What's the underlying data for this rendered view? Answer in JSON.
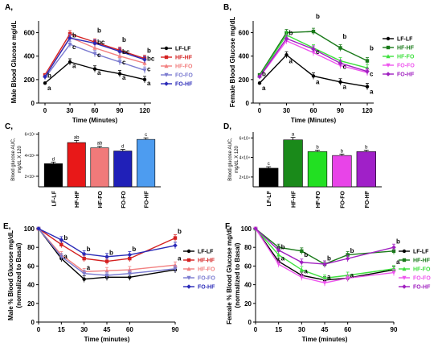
{
  "colors": {
    "LF-LF": "#000000",
    "HF-HF": "#d42020",
    "HF-FO": "#f28080",
    "FO-FO": "#7a7ad0",
    "FO-HF": "#2a2ab8",
    "B_HF-HF": "#1a7a1a",
    "B_HF-FO": "#3ee03e",
    "B_FO-FO": "#ee55ee",
    "B_FO-HF": "#a020c0",
    "C_FO-HF": "#4d9cf0",
    "D_HF-HF": "#1a8a1a",
    "D_HF-FO": "#22e022",
    "D_FO-FO": "#e844e8",
    "D_FO-HF": "#a020c8"
  },
  "chart_data": [
    {
      "id": "A",
      "panel_label": "A,",
      "type": "line",
      "ylabel": "Male Blood Glucose mg/dL",
      "xlabel": "Time (Minutes)",
      "x": [
        0,
        30,
        60,
        90,
        120
      ],
      "xticks": [
        "0",
        "30",
        "60",
        "90",
        "120"
      ],
      "ylim": [
        0,
        700
      ],
      "yticks": [
        "0",
        "200",
        "400",
        "600"
      ],
      "legend_position": "right",
      "series": [
        {
          "name": "LF-LF",
          "values": [
            170,
            350,
            290,
            250,
            200
          ]
        },
        {
          "name": "HF-HF",
          "values": [
            240,
            590,
            520,
            450,
            380
          ]
        },
        {
          "name": "HF-FO",
          "values": [
            230,
            560,
            470,
            400,
            340
          ]
        },
        {
          "name": "FO-FO",
          "values": [
            215,
            500,
            420,
            350,
            280
          ]
        },
        {
          "name": "FO-HF",
          "values": [
            225,
            555,
            510,
            440,
            370
          ]
        }
      ],
      "annotations": [
        {
          "x": 0,
          "y": 215,
          "text": "b"
        },
        {
          "x": 0,
          "y": 110,
          "text": "a"
        },
        {
          "x": 30,
          "y": 560,
          "text": "b"
        },
        {
          "x": 30,
          "y": 460,
          "text": "c"
        },
        {
          "x": 30,
          "y": 300,
          "text": "a"
        },
        {
          "x": 60,
          "y": 600,
          "text": "b"
        },
        {
          "x": 60,
          "y": 500,
          "text": "bc"
        },
        {
          "x": 60,
          "y": 390,
          "text": "c"
        },
        {
          "x": 60,
          "y": 240,
          "text": "a"
        },
        {
          "x": 90,
          "y": 520,
          "text": "b"
        },
        {
          "x": 90,
          "y": 420,
          "text": "bc"
        },
        {
          "x": 90,
          "y": 330,
          "text": "c"
        },
        {
          "x": 90,
          "y": 200,
          "text": "a"
        },
        {
          "x": 120,
          "y": 430,
          "text": "b"
        },
        {
          "x": 120,
          "y": 360,
          "text": "bc"
        },
        {
          "x": 120,
          "y": 270,
          "text": "c"
        },
        {
          "x": 120,
          "y": 150,
          "text": "a"
        }
      ]
    },
    {
      "id": "B",
      "panel_label": "B,",
      "type": "line",
      "ylabel": "Female Blood Glucose mg/dL",
      "xlabel": "Time (Minutes)",
      "x": [
        0,
        30,
        60,
        90,
        120
      ],
      "xticks": [
        "0",
        "30",
        "60",
        "90",
        "120"
      ],
      "ylim": [
        0,
        700
      ],
      "yticks": [
        "0",
        "200",
        "400",
        "600"
      ],
      "legend_position": "right",
      "series": [
        {
          "name": "LF-LF",
          "values": [
            170,
            410,
            230,
            180,
            140
          ]
        },
        {
          "name": "HF-HF",
          "values": [
            240,
            600,
            610,
            470,
            360
          ]
        },
        {
          "name": "HF-FO",
          "values": [
            230,
            580,
            470,
            360,
            300
          ]
        },
        {
          "name": "FO-FO",
          "values": [
            220,
            530,
            430,
            320,
            260
          ]
        },
        {
          "name": "FO-HF",
          "values": [
            225,
            550,
            460,
            340,
            270
          ]
        }
      ],
      "annotations": [
        {
          "x": 0,
          "y": 230,
          "text": "b"
        },
        {
          "x": 0,
          "y": 110,
          "text": "a"
        },
        {
          "x": 30,
          "y": 580,
          "text": "b"
        },
        {
          "x": 30,
          "y": 340,
          "text": "a"
        },
        {
          "x": 60,
          "y": 720,
          "text": "b"
        },
        {
          "x": 60,
          "y": 420,
          "text": "c"
        },
        {
          "x": 60,
          "y": 160,
          "text": "a"
        },
        {
          "x": 90,
          "y": 550,
          "text": "b"
        },
        {
          "x": 90,
          "y": 290,
          "text": "c"
        },
        {
          "x": 90,
          "y": 120,
          "text": "a"
        },
        {
          "x": 120,
          "y": 450,
          "text": "b"
        },
        {
          "x": 120,
          "y": 230,
          "text": "c"
        },
        {
          "x": 120,
          "y": 80,
          "text": "a"
        }
      ]
    },
    {
      "id": "C",
      "panel_label": "C,",
      "type": "bar",
      "ylabel": "Blood glucose AUC, mg/dL X 120",
      "categories": [
        "LF-LF",
        "HF-HF",
        "HF-FO",
        "FO-FO",
        "FO-HF"
      ],
      "values": [
        32000,
        52000,
        47000,
        44000,
        55000
      ],
      "errors": [
        1500,
        2000,
        1500,
        1500,
        1500
      ],
      "letters": [
        "d",
        "ab",
        "ab",
        "d",
        "c"
      ],
      "ylim": [
        10000,
        62000
      ],
      "yticks": [
        "2×10⁴",
        "4×10⁴",
        "6×10⁴"
      ],
      "ytick_values": [
        20000,
        40000,
        60000
      ],
      "bar_colors": [
        "#000000",
        "#e81818",
        "#f07a7a",
        "#2020b8",
        "#4d9cf0"
      ]
    },
    {
      "id": "D",
      "panel_label": "D,",
      "type": "bar",
      "ylabel": "Blood glucose AUC, mg/dL X 120",
      "categories": [
        "LF-LF",
        "HF-HF",
        "HF-FO",
        "FO-FO",
        "FO-HF"
      ],
      "values": [
        29000,
        58000,
        46000,
        42000,
        46000
      ],
      "errors": [
        1500,
        2500,
        1500,
        1500,
        1500
      ],
      "letters": [
        "c",
        "a",
        "b",
        "b",
        "b"
      ],
      "ylim": [
        10000,
        66000
      ],
      "yticks": [
        "2×10⁴",
        "4×10⁴",
        "6×10⁴"
      ],
      "ytick_values": [
        20000,
        40000,
        60000
      ],
      "bar_colors": [
        "#000000",
        "#1a8a1a",
        "#22e022",
        "#e844e8",
        "#a020c8"
      ]
    },
    {
      "id": "E",
      "panel_label": "E,",
      "type": "line",
      "ylabel": "Male % Blood Glucose mg/dL (normalized to Basal)",
      "xlabel": "Time (minutes)",
      "x": [
        0,
        15,
        30,
        45,
        60,
        90
      ],
      "xticks": [
        "0",
        "15",
        "30",
        "45",
        "60",
        "90"
      ],
      "ylim": [
        0,
        100
      ],
      "yticks": [
        "0",
        "20",
        "40",
        "60",
        "80",
        "100"
      ],
      "legend_position": "right",
      "series": [
        {
          "name": "LF-LF",
          "values": [
            100,
            68,
            46,
            48,
            48,
            56
          ]
        },
        {
          "name": "HF-HF",
          "values": [
            100,
            83,
            68,
            65,
            68,
            90
          ]
        },
        {
          "name": "HF-FO",
          "values": [
            100,
            72,
            54,
            55,
            56,
            61
          ]
        },
        {
          "name": "FO-FO",
          "values": [
            100,
            70,
            52,
            50,
            52,
            57
          ]
        },
        {
          "name": "FO-HF",
          "values": [
            100,
            88,
            73,
            70,
            72,
            82
          ]
        }
      ],
      "annotations": [
        {
          "x": 15,
          "y": 88,
          "text": "b"
        },
        {
          "x": 15,
          "y": 68,
          "text": "a"
        },
        {
          "x": 30,
          "y": 76,
          "text": "b"
        },
        {
          "x": 30,
          "y": 56,
          "text": "a"
        },
        {
          "x": 45,
          "y": 72,
          "text": "b"
        },
        {
          "x": 60,
          "y": 76,
          "text": "b"
        },
        {
          "x": 90,
          "y": 95,
          "text": "b"
        },
        {
          "x": 90,
          "y": 66,
          "text": "a"
        }
      ]
    },
    {
      "id": "F",
      "panel_label": "F,",
      "type": "line",
      "ylabel": "Female % Blood Glucose mg/dL (normalized to Basal)",
      "xlabel": "Time (minutes)",
      "x": [
        0,
        15,
        30,
        45,
        60,
        90
      ],
      "xticks": [
        "0",
        "15",
        "30",
        "45",
        "60",
        "90"
      ],
      "ylim": [
        0,
        100
      ],
      "yticks": [
        "0",
        "20",
        "40",
        "60",
        "80",
        "100"
      ],
      "legend_position": "right",
      "series": [
        {
          "name": "LF-LF",
          "values": [
            100,
            65,
            50,
            45,
            47,
            56
          ]
        },
        {
          "name": "HF-HF",
          "values": [
            100,
            80,
            76,
            62,
            72,
            76
          ]
        },
        {
          "name": "HF-FO",
          "values": [
            100,
            72,
            56,
            47,
            50,
            57
          ]
        },
        {
          "name": "FO-FO",
          "values": [
            100,
            62,
            48,
            42,
            47,
            53
          ]
        },
        {
          "name": "FO-HF",
          "values": [
            100,
            77,
            64,
            62,
            68,
            80
          ]
        }
      ],
      "annotations": [
        {
          "x": 15,
          "y": 78,
          "text": "b"
        },
        {
          "x": 15,
          "y": 66,
          "text": "a"
        },
        {
          "x": 30,
          "y": 70,
          "text": "b"
        },
        {
          "x": 30,
          "y": 52,
          "text": "a"
        },
        {
          "x": 45,
          "y": 66,
          "text": "b"
        },
        {
          "x": 45,
          "y": 46,
          "text": "a"
        },
        {
          "x": 60,
          "y": 74,
          "text": "b"
        },
        {
          "x": 60,
          "y": 48,
          "text": "a"
        },
        {
          "x": 90,
          "y": 84,
          "text": "b"
        },
        {
          "x": 90,
          "y": 62,
          "text": "a"
        }
      ]
    }
  ]
}
